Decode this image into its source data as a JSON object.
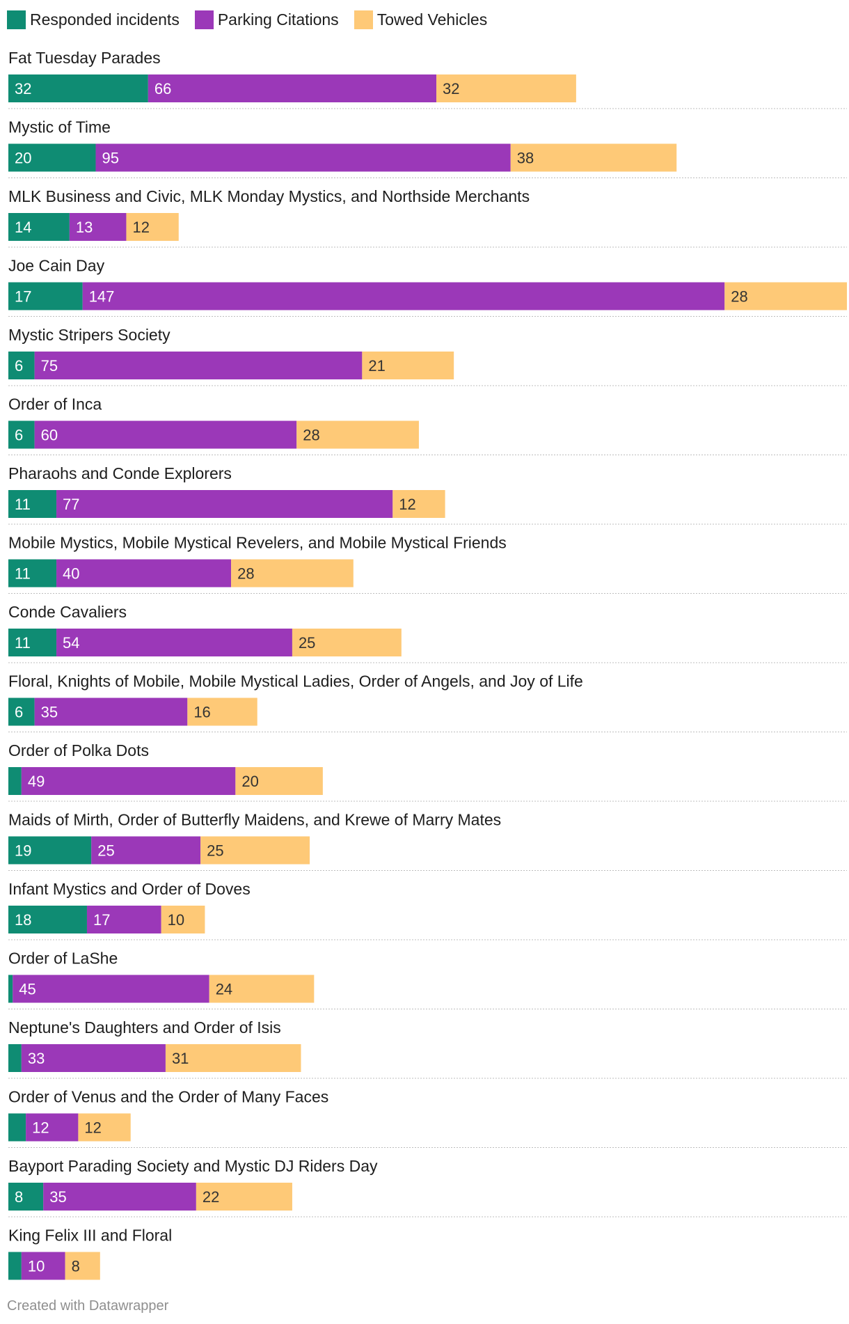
{
  "chart_data": {
    "type": "bar",
    "orientation": "horizontal",
    "stacked": true,
    "legend_position": "top-left",
    "series": [
      {
        "name": "Responded incidents",
        "color": "#0f8c73",
        "values": [
          32,
          20,
          14,
          17,
          6,
          6,
          11,
          11,
          11,
          6,
          3,
          19,
          18,
          1,
          3,
          4,
          8,
          3
        ]
      },
      {
        "name": "Parking Citations",
        "color": "#9b38b8",
        "values": [
          66,
          95,
          13,
          147,
          75,
          60,
          77,
          40,
          54,
          35,
          49,
          25,
          17,
          45,
          33,
          12,
          35,
          10
        ]
      },
      {
        "name": "Towed Vehicles",
        "color": "#fec977",
        "values": [
          32,
          38,
          12,
          28,
          21,
          28,
          12,
          28,
          25,
          16,
          20,
          25,
          10,
          24,
          31,
          12,
          22,
          8
        ]
      }
    ],
    "value_labels": [
      [
        "32",
        "66",
        "32"
      ],
      [
        "20",
        "95",
        "38"
      ],
      [
        "14",
        "13",
        "12"
      ],
      [
        "17",
        "147",
        "28"
      ],
      [
        "6",
        "75",
        "21"
      ],
      [
        "6",
        "60",
        "28"
      ],
      [
        "11",
        "77",
        "12"
      ],
      [
        "11",
        "40",
        "28"
      ],
      [
        "11",
        "54",
        "25"
      ],
      [
        "6",
        "35",
        "16"
      ],
      [
        "",
        "49",
        "20"
      ],
      [
        "19",
        "25",
        "25"
      ],
      [
        "18",
        "17",
        "10"
      ],
      [
        "",
        "45",
        "24"
      ],
      [
        "",
        "33",
        "31"
      ],
      [
        "",
        "12",
        "12"
      ],
      [
        "8",
        "35",
        "22"
      ],
      [
        "",
        "10",
        "8"
      ]
    ],
    "categories": [
      "Fat Tuesday Parades",
      "Mystic of Time",
      "MLK Business and Civic, MLK Monday Mystics, and Northside Merchants",
      "Joe Cain Day",
      "Mystic Stripers Society",
      "Order of Inca",
      "Pharaohs and Conde Explorers",
      "Mobile Mystics, Mobile Mystical Revelers, and Mobile Mystical Friends",
      "Conde Cavaliers",
      "Floral, Knights of Mobile, Mobile Mystical Ladies, Order of Angels, and Joy of Life",
      "Order of Polka Dots",
      "Maids of Mirth, Order of Butterfly Maidens, and Krewe of Marry Mates",
      "Infant Mystics and Order of Doves",
      "Order of LaShe",
      "Neptune's Daughters and Order of Isis",
      "Order of Venus and the Order of Many Faces",
      "Bayport Parading Society and Mystic DJ Riders Day",
      "King Felix III and Floral"
    ],
    "xlim": [
      0,
      192
    ],
    "title": "",
    "xlabel": "",
    "ylabel": ""
  },
  "footer": {
    "credit": "Created with Datawrapper"
  }
}
